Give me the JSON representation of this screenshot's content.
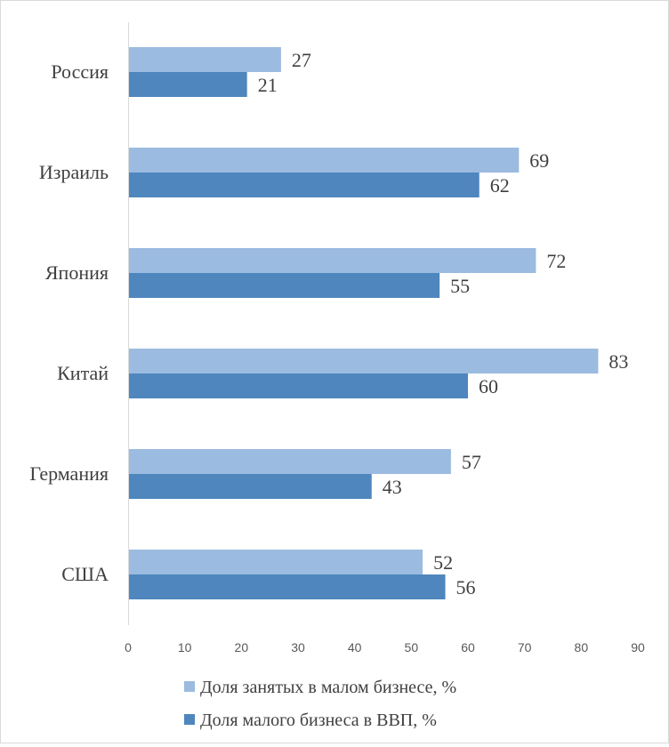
{
  "chart_data": {
    "type": "bar",
    "orientation": "horizontal",
    "categories": [
      "Россия",
      "Израиль",
      "Япония",
      "Китай",
      "Германия",
      "США"
    ],
    "series": [
      {
        "name": "Доля занятых в малом бизнесе, %",
        "color": "#9bbbe0",
        "values": [
          27,
          69,
          72,
          83,
          57,
          52
        ]
      },
      {
        "name": "Доля малого бизнеса в ВВП,  %",
        "color": "#4e86bd",
        "values": [
          21,
          62,
          55,
          60,
          43,
          56
        ]
      }
    ],
    "xlim": [
      0,
      90
    ],
    "x_ticks": [
      0,
      10,
      20,
      30,
      40,
      50,
      60,
      70,
      80,
      90
    ],
    "title": "",
    "xlabel": "",
    "ylabel": "",
    "grid": false,
    "legend_position": "bottom"
  }
}
